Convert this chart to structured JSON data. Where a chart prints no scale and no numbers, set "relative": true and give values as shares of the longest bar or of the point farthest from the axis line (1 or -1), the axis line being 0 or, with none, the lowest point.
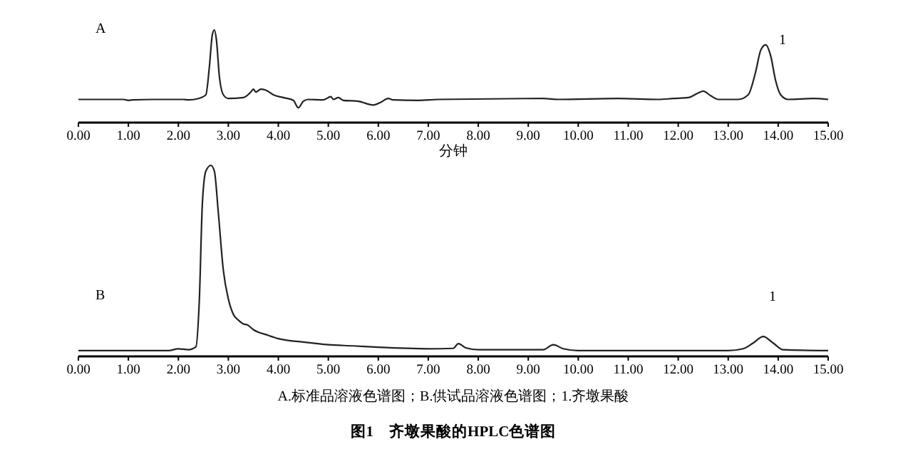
{
  "chart_data": [
    {
      "type": "line",
      "relative": true,
      "color": "#222222",
      "xlabel": "分钟",
      "xlim": [
        0,
        15
      ],
      "xticks": [
        {
          "value": 0,
          "label": "0.00"
        },
        {
          "value": 1,
          "label": "1.00"
        },
        {
          "value": 2,
          "label": "2.00"
        },
        {
          "value": 3,
          "label": "3.00"
        },
        {
          "value": 4,
          "label": "4.00"
        },
        {
          "value": 5,
          "label": "5.00"
        },
        {
          "value": 6,
          "label": "6.00"
        },
        {
          "value": 7,
          "label": "7.00"
        },
        {
          "value": 8,
          "label": "8.00"
        },
        {
          "value": 9,
          "label": "9.00"
        },
        {
          "value": 10,
          "label": "10.00"
        },
        {
          "value": 11,
          "label": "11.00"
        },
        {
          "value": 12,
          "label": "12.00"
        },
        {
          "value": 13,
          "label": "13.00"
        },
        {
          "value": 14,
          "label": "14.00"
        },
        {
          "value": 15,
          "label": "15.00"
        }
      ],
      "grid": false,
      "x": [
        0,
        0.9,
        1.0,
        1.1,
        1.5,
        2.1,
        2.2,
        2.4,
        2.55,
        2.62,
        2.68,
        2.72,
        2.76,
        2.82,
        2.9,
        3.0,
        3.3,
        3.45,
        3.5,
        3.55,
        3.65,
        3.75,
        3.9,
        4.1,
        4.3,
        4.4,
        4.5,
        4.6,
        4.9,
        5.05,
        5.1,
        5.2,
        5.3,
        5.6,
        5.9,
        6.05,
        6.2,
        6.3,
        6.8,
        7.2,
        9.3,
        9.6,
        10.8,
        11.6,
        11.9,
        12.2,
        12.4,
        12.5,
        12.65,
        12.8,
        13.2,
        13.4,
        13.55,
        13.65,
        13.75,
        13.85,
        13.95,
        14.05,
        14.2,
        14.7,
        15
      ],
      "values": [
        0.25,
        0.25,
        0.24,
        0.245,
        0.25,
        0.25,
        0.245,
        0.26,
        0.3,
        0.6,
        0.95,
        1.0,
        0.9,
        0.5,
        0.3,
        0.26,
        0.27,
        0.33,
        0.36,
        0.33,
        0.36,
        0.35,
        0.3,
        0.27,
        0.24,
        0.16,
        0.23,
        0.25,
        0.245,
        0.28,
        0.25,
        0.27,
        0.24,
        0.23,
        0.19,
        0.22,
        0.26,
        0.245,
        0.24,
        0.25,
        0.26,
        0.25,
        0.26,
        0.25,
        0.26,
        0.27,
        0.32,
        0.34,
        0.29,
        0.25,
        0.25,
        0.3,
        0.55,
        0.78,
        0.84,
        0.72,
        0.45,
        0.3,
        0.25,
        0.26,
        0.25
      ],
      "annotations": [
        "A",
        "1"
      ]
    },
    {
      "type": "line",
      "relative": true,
      "color": "#222222",
      "title": "图1　齐墩果酸的HPLC色谱图",
      "xlim": [
        0,
        15
      ],
      "xticks": [
        {
          "value": 0,
          "label": "0.00"
        },
        {
          "value": 1,
          "label": "1.00"
        },
        {
          "value": 2,
          "label": "2.00"
        },
        {
          "value": 3,
          "label": "3.00"
        },
        {
          "value": 4,
          "label": "4.00"
        },
        {
          "value": 5,
          "label": "5.00"
        },
        {
          "value": 6,
          "label": "6.00"
        },
        {
          "value": 7,
          "label": "7.00"
        },
        {
          "value": 8,
          "label": "8.00"
        },
        {
          "value": 9,
          "label": "9.00"
        },
        {
          "value": 10,
          "label": "10.00"
        },
        {
          "value": 11,
          "label": "11.00"
        },
        {
          "value": 12,
          "label": "12.00"
        },
        {
          "value": 13,
          "label": "13.00"
        },
        {
          "value": 14,
          "label": "14.00"
        },
        {
          "value": 15,
          "label": "15.00"
        }
      ],
      "grid": false,
      "x": [
        0,
        1.8,
        2.0,
        2.2,
        2.35,
        2.42,
        2.48,
        2.55,
        2.65,
        2.72,
        2.8,
        2.9,
        3.0,
        3.1,
        3.2,
        3.3,
        3.38,
        3.5,
        3.8,
        4.0,
        4.5,
        5.0,
        5.5,
        6.0,
        7.0,
        7.5,
        7.6,
        7.75,
        8.0,
        9.3,
        9.5,
        9.7,
        10,
        13.0,
        13.3,
        13.5,
        13.7,
        13.9,
        14.1,
        15
      ],
      "values": [
        0.03,
        0.03,
        0.04,
        0.035,
        0.05,
        0.3,
        0.8,
        0.97,
        1.0,
        0.97,
        0.75,
        0.45,
        0.3,
        0.22,
        0.19,
        0.17,
        0.165,
        0.14,
        0.11,
        0.093,
        0.075,
        0.061,
        0.055,
        0.048,
        0.04,
        0.042,
        0.067,
        0.045,
        0.035,
        0.035,
        0.061,
        0.04,
        0.03,
        0.03,
        0.04,
        0.07,
        0.104,
        0.07,
        0.035,
        0.03
      ],
      "annotations": [
        "B",
        "1",
        "A.标准品溶液色谱图；B.供试品溶液色谱图；1.齐墩果酸"
      ]
    }
  ]
}
